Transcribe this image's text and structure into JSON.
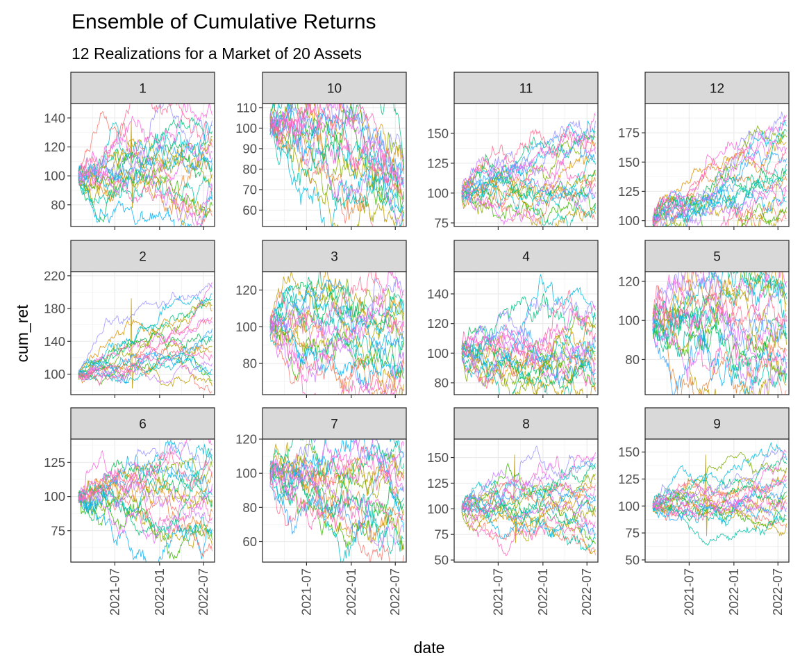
{
  "chart_data": {
    "type": "line",
    "title": "Ensemble of Cumulative Returns",
    "subtitle": "12 Realizations for a Market of 20 Assets",
    "xlabel": "date",
    "ylabel": "cum_ret",
    "x_ticks": [
      "2021-07",
      "2022-01",
      "2022-07"
    ],
    "x_range": [
      "2021-01-01",
      "2022-08-15"
    ],
    "grid": true,
    "legend": "none",
    "series_per_panel": 20,
    "panels": [
      {
        "label": "1",
        "ylim": [
          65,
          150
        ],
        "y_ticks": [
          80,
          100,
          120,
          140
        ],
        "start": 100,
        "end_range": [
          72,
          142
        ],
        "vol": 1.25,
        "drift": 0.0,
        "spike": true
      },
      {
        "label": "10",
        "ylim": [
          52,
          112
        ],
        "y_ticks": [
          60,
          70,
          80,
          90,
          100,
          110
        ],
        "start": 102,
        "end_range": [
          54,
          86
        ],
        "vol": 1.3,
        "drift": -0.3
      },
      {
        "label": "11",
        "ylim": [
          72,
          175
        ],
        "y_ticks": [
          75,
          100,
          125,
          150
        ],
        "start": 100,
        "end_range": [
          78,
          165
        ],
        "vol": 1.2,
        "drift": 0.15
      },
      {
        "label": "12",
        "ylim": [
          95,
          200
        ],
        "y_ticks": [
          100,
          125,
          150,
          175
        ],
        "start": 100,
        "end_range": [
          102,
          190
        ],
        "vol": 1.25,
        "drift": 0.35
      },
      {
        "label": "2",
        "ylim": [
          75,
          225
        ],
        "y_ticks": [
          100,
          140,
          180,
          220
        ],
        "start": 100,
        "end_range": [
          78,
          212
        ],
        "vol": 1.1,
        "drift": 0.35,
        "spike": true
      },
      {
        "label": "3",
        "ylim": [
          63,
          130
        ],
        "y_ticks": [
          80,
          100,
          120
        ],
        "start": 100,
        "end_range": [
          66,
          120
        ],
        "vol": 1.2,
        "drift": -0.15
      },
      {
        "label": "4",
        "ylim": [
          72,
          155
        ],
        "y_ticks": [
          80,
          100,
          120,
          140
        ],
        "start": 100,
        "end_range": [
          74,
          132
        ],
        "vol": 1.2,
        "drift": -0.05
      },
      {
        "label": "5",
        "ylim": [
          62,
          125
        ],
        "y_ticks": [
          80,
          100,
          120
        ],
        "start": 100,
        "end_range": [
          64,
          120
        ],
        "vol": 1.3,
        "drift": -0.05
      },
      {
        "label": "6",
        "ylim": [
          52,
          142
        ],
        "y_ticks": [
          75,
          100,
          125
        ],
        "start": 100,
        "end_range": [
          60,
          138
        ],
        "vol": 1.2,
        "drift": -0.1
      },
      {
        "label": "7",
        "ylim": [
          48,
          120
        ],
        "y_ticks": [
          60,
          80,
          100,
          120
        ],
        "start": 100,
        "end_range": [
          52,
          116
        ],
        "vol": 1.3,
        "drift": -0.15
      },
      {
        "label": "8",
        "ylim": [
          48,
          168
        ],
        "y_ticks": [
          50,
          75,
          100,
          125,
          150
        ],
        "start": 100,
        "end_range": [
          55,
          155
        ],
        "vol": 1.2,
        "drift": -0.1,
        "spike": true
      },
      {
        "label": "9",
        "ylim": [
          48,
          162
        ],
        "y_ticks": [
          50,
          75,
          100,
          125,
          150
        ],
        "start": 100,
        "end_range": [
          80,
          150
        ],
        "vol": 1.0,
        "drift": 0.05,
        "spike": true
      }
    ],
    "palette": [
      "#F8766D",
      "#EA8331",
      "#D89000",
      "#C09B00",
      "#A3A500",
      "#7CAE00",
      "#39B600",
      "#00BB4E",
      "#00BF7D",
      "#00C1A3",
      "#00BFC4",
      "#00BAE0",
      "#00B0F6",
      "#35A2FF",
      "#9590FF",
      "#C77CFF",
      "#E76BF3",
      "#FA62DB",
      "#FF62BC",
      "#FF6C90"
    ]
  }
}
